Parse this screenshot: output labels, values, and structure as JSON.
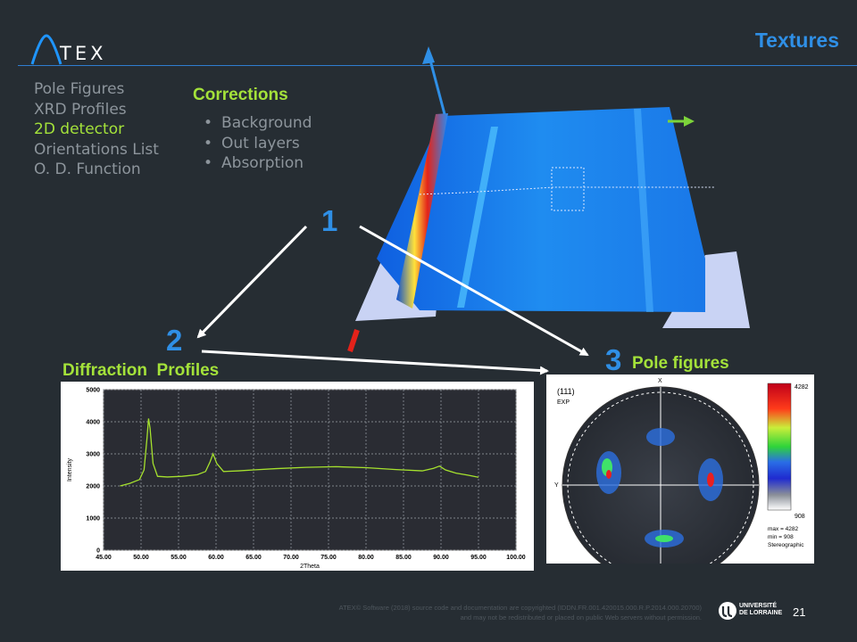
{
  "header": {
    "logo_text": "TEX",
    "title": "Textures"
  },
  "menu": {
    "items": [
      "Pole Figures",
      "XRD Profiles",
      "2D detector",
      "Orientations List",
      "O. D. Function"
    ],
    "active_index": 2
  },
  "corrections": {
    "title": "Corrections",
    "items": [
      "Background",
      "Out layers",
      "Absorption"
    ]
  },
  "steps": [
    {
      "number": "1"
    },
    {
      "number": "2",
      "label": "Diffraction  Profiles"
    },
    {
      "number": "3",
      "label": "Pole figures"
    }
  ],
  "chart_data": {
    "type": "line",
    "xlabel": "2Theta",
    "ylabel": "Intensity",
    "xlim": [
      45,
      100
    ],
    "ylim": [
      0,
      5000
    ],
    "xticks": [
      "45.00",
      "50.00",
      "55.00",
      "60.00",
      "65.00",
      "70.00",
      "75.00",
      "80.00",
      "85.00",
      "90.00",
      "95.00",
      "100.00"
    ],
    "yticks": [
      "0",
      "1000",
      "2000",
      "3000",
      "4000",
      "5000"
    ],
    "grid": true,
    "series": [
      {
        "color": "#a6e22e",
        "x": [
          47.2,
          48.5,
          49.8,
          50.4,
          50.8,
          51.0,
          51.2,
          51.6,
          52.2,
          53.5,
          55.5,
          57.5,
          58.6,
          59.2,
          59.6,
          60.1,
          61.0,
          63.0,
          65.0,
          68.0,
          72.0,
          76.0,
          80.0,
          84.0,
          87.5,
          89.0,
          89.8,
          90.6,
          92.0,
          93.5,
          95.0
        ],
        "y": [
          2000,
          2080,
          2200,
          2500,
          3500,
          4100,
          3800,
          2700,
          2300,
          2280,
          2300,
          2350,
          2450,
          2750,
          3000,
          2700,
          2450,
          2470,
          2500,
          2540,
          2580,
          2600,
          2570,
          2510,
          2470,
          2550,
          2620,
          2500,
          2400,
          2340,
          2270
        ]
      }
    ]
  },
  "pole_figure": {
    "reflection": "(111)",
    "source": "EXP",
    "axis_x": "X",
    "axis_y": "Y",
    "scale_max": "4282",
    "scale_min": "908",
    "stats": [
      "max = 4282",
      "min = 908",
      "Stereographic"
    ]
  },
  "footer": {
    "copyright_line1": "ATEX© Software (2018) source code and documentation are copyrighted (IDDN.FR.001.420015.000.R.P.2014.000.20700)",
    "copyright_line2": "and may not be redistributed or placed on public Web servers without permission.",
    "university": [
      "UNIVERSITÉ",
      "DE LORRAINE"
    ],
    "page_number": "21"
  }
}
